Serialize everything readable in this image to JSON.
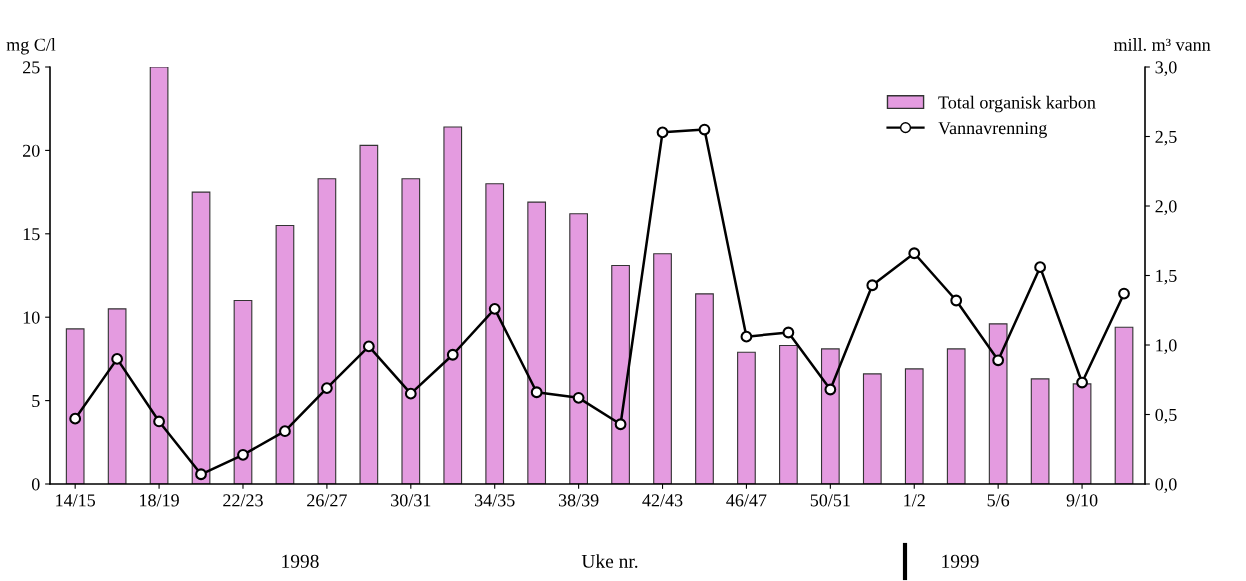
{
  "chart_data": {
    "type": "bar",
    "categories": [
      "14/15",
      null,
      "18/19",
      null,
      "22/23",
      null,
      "26/27",
      null,
      "30/31",
      null,
      "34/35",
      null,
      "38/39",
      null,
      "42/43",
      null,
      "46/47",
      null,
      "50/51",
      null,
      "1/2",
      null,
      "5/6",
      null,
      "9/10",
      null
    ],
    "series": [
      {
        "name": "Total organisk karbon",
        "color": "#e49be0",
        "values": [
          9.3,
          10.5,
          25,
          17.5,
          11,
          15.5,
          18.3,
          20.3,
          18.3,
          21.4,
          18,
          16.9,
          16.2,
          13.1,
          13.8,
          11.4,
          7.9,
          8.3,
          8.1,
          6.6,
          6.9,
          8.1,
          9.6,
          6.3,
          6.0,
          9.4
        ]
      },
      {
        "name": "Vannavrenning",
        "type": "line",
        "axis": "y2",
        "color": "#000000",
        "values": [
          0.47,
          0.9,
          0.45,
          0.07,
          0.21,
          0.38,
          0.69,
          0.99,
          0.65,
          0.93,
          1.26,
          0.66,
          0.62,
          0.43,
          2.53,
          2.55,
          1.06,
          1.09,
          0.68,
          1.43,
          1.66,
          1.32,
          0.89,
          1.56,
          0.73,
          1.37
        ]
      }
    ],
    "ylabel": "mg C/l",
    "y2label": "mill. m³ vann",
    "xlabel": "Uke nr.",
    "ylim": [
      0,
      25
    ],
    "yticks": [
      0,
      5,
      10,
      15,
      20,
      25
    ],
    "y2lim": [
      0,
      3
    ],
    "y2ticks": [
      {
        "value": 0,
        "label": "0,0"
      },
      {
        "value": 0.5,
        "label": "0,5"
      },
      {
        "value": 1,
        "label": "1,0"
      },
      {
        "value": 1.5,
        "label": "1,5"
      },
      {
        "value": 2,
        "label": "2,0"
      },
      {
        "value": 2.5,
        "label": "2,5"
      },
      {
        "value": 3,
        "label": "3,0"
      }
    ],
    "annotations": [
      "1998",
      "1999"
    ],
    "marker": "circle",
    "line_style": "solid",
    "legend": "top right",
    "grid": false
  }
}
